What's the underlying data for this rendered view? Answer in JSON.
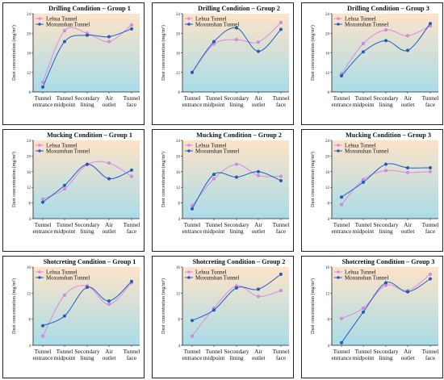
{
  "colors": {
    "lehua": "#d98be8",
    "moxunshan": "#1f5fc8",
    "frame": "#222222",
    "bg_top": "#fde3c8",
    "bg_bottom": "#a9dce8"
  },
  "shared": {
    "categories": [
      [
        "Tunnel",
        "entrance"
      ],
      [
        "Tunnel",
        "midpoint"
      ],
      [
        "Secondary",
        "lining"
      ],
      [
        "Air",
        "outlet"
      ],
      [
        "Tunnel",
        "face"
      ]
    ],
    "ylabel": "Dust concentration (mg/m³)",
    "legend_position": "top-left"
  },
  "chart_data": [
    {
      "type": "line",
      "title": "Drilling Condition – Group 1",
      "ylim": [
        8,
        24
      ],
      "yticks": [
        "8",
        "12",
        "16",
        "20",
        "24"
      ],
      "series": [
        {
          "name": "Lehua Tunnel",
          "values": [
            10.0,
            20.5,
            20.0,
            18.3,
            21.7
          ]
        },
        {
          "name": "Moxunshan Tunnel",
          "values": [
            9.0,
            18.3,
            19.6,
            19.3,
            20.9
          ]
        }
      ]
    },
    {
      "type": "line",
      "title": "Drilling Condition – Group 2",
      "ylim": [
        8,
        24
      ],
      "yticks": [
        "8",
        "12",
        "16",
        "20",
        "24"
      ],
      "series": [
        {
          "name": "Lehua Tunnel",
          "values": [
            12.0,
            17.8,
            18.7,
            18.2,
            22.2
          ]
        },
        {
          "name": "Moxunshan Tunnel",
          "values": [
            12.0,
            18.3,
            21.1,
            16.3,
            20.8
          ]
        }
      ]
    },
    {
      "type": "line",
      "title": "Drilling Condition – Group 3",
      "ylim": [
        8,
        24
      ],
      "yticks": [
        "8",
        "12",
        "16",
        "20",
        "24"
      ],
      "series": [
        {
          "name": "Lehua Tunnel",
          "values": [
            11.7,
            17.9,
            20.7,
            19.5,
            21.5
          ]
        },
        {
          "name": "Moxunshan Tunnel",
          "values": [
            11.3,
            16.2,
            18.5,
            16.5,
            22.0
          ]
        }
      ]
    },
    {
      "type": "line",
      "title": "Mucking Condition – Group 1",
      "ylim": [
        4,
        24
      ],
      "yticks": [
        "4",
        "8",
        "12",
        "16",
        "20",
        "24"
      ],
      "series": [
        {
          "name": "Lehua Tunnel",
          "values": [
            9.0,
            11.6,
            17.8,
            18.2,
            14.8
          ]
        },
        {
          "name": "Moxunshan Tunnel",
          "values": [
            8.2,
            12.5,
            17.9,
            14.2,
            16.4
          ]
        }
      ]
    },
    {
      "type": "line",
      "title": "Mucking Condition – Group 2",
      "ylim": [
        4,
        24
      ],
      "yticks": [
        "4",
        "8",
        "12",
        "16",
        "20",
        "24"
      ],
      "series": [
        {
          "name": "Lehua Tunnel",
          "values": [
            7.3,
            14.2,
            17.9,
            15.0,
            14.8
          ]
        },
        {
          "name": "Moxunshan Tunnel",
          "values": [
            6.5,
            15.3,
            14.6,
            16.0,
            13.7
          ]
        }
      ]
    },
    {
      "type": "line",
      "title": "Mucking Condition – Group 3",
      "ylim": [
        4,
        24
      ],
      "yticks": [
        "4",
        "8",
        "12",
        "16",
        "20",
        "24"
      ],
      "series": [
        {
          "name": "Lehua Tunnel",
          "values": [
            7.6,
            14.0,
            16.3,
            15.8,
            16.0
          ]
        },
        {
          "name": "Moxunshan Tunnel",
          "values": [
            9.5,
            13.3,
            17.9,
            17.0,
            17.0
          ]
        }
      ]
    },
    {
      "type": "line",
      "title": "Shotcreting Condition – Group 1",
      "ylim": [
        4,
        16
      ],
      "yticks": [
        "4",
        "8",
        "12",
        "16"
      ],
      "series": [
        {
          "name": "Lehua Tunnel",
          "values": [
            5.4,
            11.7,
            13.1,
            10.3,
            13.6
          ]
        },
        {
          "name": "Moxunshan Tunnel",
          "values": [
            7.0,
            8.5,
            12.9,
            10.8,
            13.8
          ]
        }
      ]
    },
    {
      "type": "line",
      "title": "Shotcreting Condition – Group 2",
      "ylim": [
        4,
        16
      ],
      "yticks": [
        "4",
        "8",
        "12",
        "16"
      ],
      "series": [
        {
          "name": "Lehua Tunnel",
          "values": [
            5.4,
            9.7,
            13.1,
            11.5,
            12.4
          ]
        },
        {
          "name": "Moxunshan Tunnel",
          "values": [
            7.8,
            9.4,
            12.8,
            12.6,
            14.9
          ]
        }
      ]
    },
    {
      "type": "line",
      "title": "Shotcreting Condition – Group 3",
      "ylim": [
        4,
        16
      ],
      "yticks": [
        "4",
        "8",
        "12",
        "16"
      ],
      "series": [
        {
          "name": "Lehua Tunnel",
          "values": [
            8.1,
            9.7,
            13.2,
            12.4,
            14.9
          ]
        },
        {
          "name": "Moxunshan Tunnel",
          "values": [
            4.4,
            9.1,
            13.6,
            12.2,
            14.2
          ]
        }
      ]
    }
  ]
}
